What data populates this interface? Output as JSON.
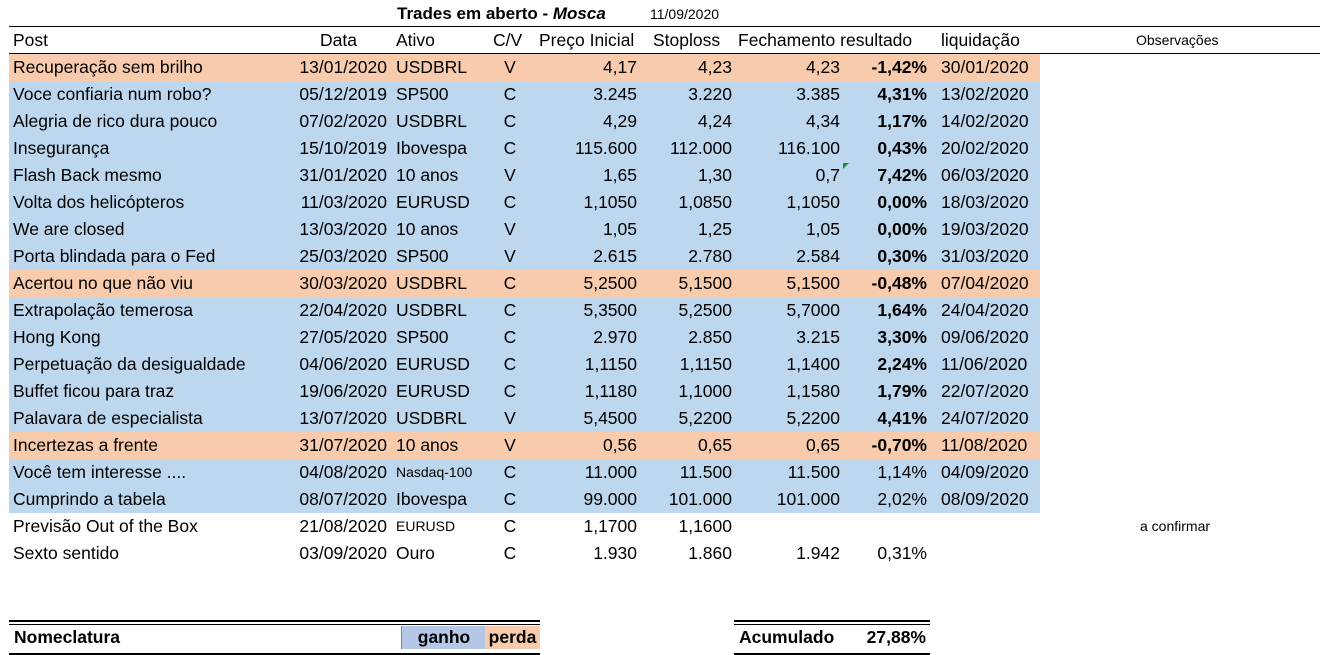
{
  "title": {
    "main": "Trades em aberto - ",
    "emph": "Mosca",
    "date": "11/09/2020"
  },
  "headers": {
    "post": "Post",
    "data": "Data",
    "ativo": "Ativo",
    "cv": "C/V",
    "preco": "Preço Inicial",
    "stop": "Stoploss",
    "fech": "Fechamento",
    "res": "resultado",
    "liq": "liquidação",
    "obs": "Observações"
  },
  "rows": [
    {
      "status": "loss",
      "post": "Recuperação sem brilho",
      "data": "13/01/2020",
      "ativo": "USDBRL",
      "cv": "V",
      "preco": "4,17",
      "stop": "4,23",
      "fech": "4,23",
      "res": "-1,42%",
      "liq": "30/01/2020",
      "obs": ""
    },
    {
      "status": "gain",
      "post": "Voce confiaria num robo?",
      "data": "05/12/2019",
      "ativo": "SP500",
      "cv": "C",
      "preco": "3.245",
      "stop": "3.220",
      "fech": "3.385",
      "res": "4,31%",
      "liq": "13/02/2020",
      "obs": ""
    },
    {
      "status": "gain",
      "post": "Alegria de rico dura pouco",
      "data": "07/02/2020",
      "ativo": "USDBRL",
      "cv": "C",
      "preco": "4,29",
      "stop": "4,24",
      "fech": "4,34",
      "res": "1,17%",
      "liq": "14/02/2020",
      "obs": ""
    },
    {
      "status": "gain",
      "post": "Insegurança",
      "data": "15/10/2019",
      "ativo": "Ibovespa",
      "cv": "C",
      "preco": "115.600",
      "stop": "112.000",
      "fech": "116.100",
      "res": "0,43%",
      "liq": "20/02/2020",
      "obs": ""
    },
    {
      "status": "gain",
      "post": "Flash Back mesmo",
      "data": "31/01/2020",
      "ativo": "10 anos",
      "cv": "V",
      "preco": "1,65",
      "stop": "1,30",
      "fech": "0,7",
      "res": "7,42%",
      "liq": "06/03/2020",
      "obs": "",
      "marker": true
    },
    {
      "status": "gain",
      "post": "Volta dos helicópteros",
      "data": "11/03/2020",
      "ativo": "EURUSD",
      "cv": "C",
      "preco": "1,1050",
      "stop": "1,0850",
      "fech": "1,1050",
      "res": "0,00%",
      "liq": "18/03/2020",
      "obs": ""
    },
    {
      "status": "gain",
      "post": "We are closed",
      "data": "13/03/2020",
      "ativo": "10 anos",
      "cv": "V",
      "preco": "1,05",
      "stop": "1,25",
      "fech": "1,05",
      "res": "0,00%",
      "liq": "19/03/2020",
      "obs": ""
    },
    {
      "status": "gain",
      "post": "Porta blindada para o Fed",
      "data": "25/03/2020",
      "ativo": "SP500",
      "cv": "V",
      "preco": "2.615",
      "stop": "2.780",
      "fech": "2.584",
      "res": "0,30%",
      "liq": "31/03/2020",
      "obs": ""
    },
    {
      "status": "loss",
      "post": "Acertou no que não viu",
      "data": "30/03/2020",
      "ativo": "USDBRL",
      "cv": "C",
      "preco": "5,2500",
      "stop": "5,1500",
      "fech": "5,1500",
      "res": "-0,48%",
      "liq": "07/04/2020",
      "obs": ""
    },
    {
      "status": "gain",
      "post": "Extrapolação temerosa",
      "data": "22/04/2020",
      "ativo": "USDBRL",
      "cv": "C",
      "preco": "5,3500",
      "stop": "5,2500",
      "fech": "5,7000",
      "res": "1,64%",
      "liq": "24/04/2020",
      "obs": ""
    },
    {
      "status": "gain",
      "post": "Hong Kong",
      "data": "27/05/2020",
      "ativo": "SP500",
      "cv": "C",
      "preco": "2.970",
      "stop": "2.850",
      "fech": "3.215",
      "res": "3,30%",
      "liq": "09/06/2020",
      "obs": ""
    },
    {
      "status": "gain",
      "post": "Perpetuação da desigualdade",
      "data": "04/06/2020",
      "ativo": "EURUSD",
      "cv": "C",
      "preco": "1,1150",
      "stop": "1,1150",
      "fech": "1,1400",
      "res": "2,24%",
      "liq": "11/06/2020",
      "obs": ""
    },
    {
      "status": "gain",
      "post": "Buffet ficou para traz",
      "data": "19/06/2020",
      "ativo": "EURUSD",
      "cv": "C",
      "preco": "1,1180",
      "stop": "1,1000",
      "fech": "1,1580",
      "res": "1,79%",
      "liq": "22/07/2020",
      "obs": ""
    },
    {
      "status": "gain",
      "post": "Palavara de especialista",
      "data": "13/07/2020",
      "ativo": "USDBRL",
      "cv": "V",
      "preco": "5,4500",
      "stop": "5,2200",
      "fech": "5,2200",
      "res": "4,41%",
      "liq": "24/07/2020",
      "obs": ""
    },
    {
      "status": "loss",
      "post": "Incertezas a frente",
      "data": "31/07/2020",
      "ativo": "10 anos",
      "cv": "V",
      "preco": "0,56",
      "stop": "0,65",
      "fech": "0,65",
      "res": "-0,70%",
      "liq": "11/08/2020",
      "obs": ""
    },
    {
      "status": "gain",
      "post": "Você tem interesse ....",
      "data": "04/08/2020",
      "ativo": "Nasdaq-100",
      "cv": "C",
      "preco": "11.000",
      "stop": "11.500",
      "fech": "11.500",
      "res": "1,14%",
      "liq": "04/09/2020",
      "obs": "",
      "plainres": true,
      "smallativo": true
    },
    {
      "status": "gain",
      "post": "Cumprindo a tabela",
      "data": "08/07/2020",
      "ativo": "Ibovespa",
      "cv": "C",
      "preco": "99.000",
      "stop": "101.000",
      "fech": "101.000",
      "res": "2,02%",
      "liq": "08/09/2020",
      "obs": "",
      "plainres": true
    },
    {
      "status": "open",
      "post": "Previsão Out of the Box",
      "data": "21/08/2020",
      "ativo": "EURUSD",
      "cv": "C",
      "preco": "1,1700",
      "stop": "1,1600",
      "fech": "",
      "res": "",
      "liq": "",
      "obs": "a confirmar",
      "plainres": true,
      "smallativo": true
    },
    {
      "status": "open",
      "post": "Sexto sentido",
      "data": "03/09/2020",
      "ativo": "Ouro",
      "cv": "C",
      "preco": "1.930",
      "stop": "1.860",
      "fech": "1.942",
      "res": "0,31%",
      "liq": "",
      "obs": "",
      "plainres": true
    }
  ],
  "legend": {
    "label": "Nomeclatura",
    "gain": "ganho",
    "loss": "perda"
  },
  "total": {
    "label": "Acumulado",
    "value": "27,88%"
  },
  "colors": {
    "gain": "#bdd7ee",
    "loss": "#f8cbad"
  }
}
